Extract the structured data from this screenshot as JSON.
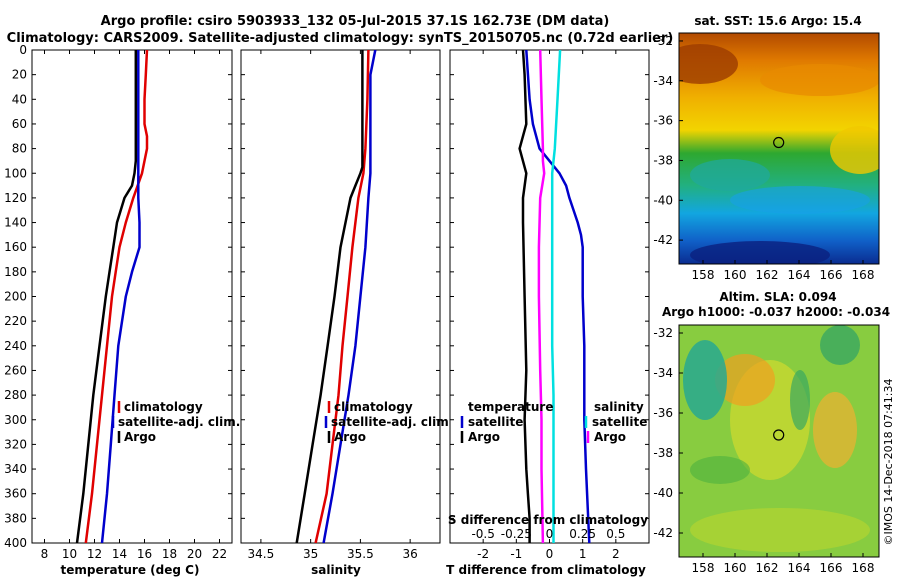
{
  "figure": {
    "title_line1": "Argo profile: csiro 5903933_132 05-Jul-2015 37.1S 162.73E (DM data)",
    "title_line2": "Climatology: CARS2009. Satellite-adjusted climatology: synTS_20150705.nc (0.72d earlier)",
    "watermark": "©IMOS 14-Dec-2018 07:41:34"
  },
  "chart_data": [
    {
      "id": "temperature",
      "type": "line",
      "xlabel": "temperature (deg C)",
      "xlim": [
        7,
        23
      ],
      "xticks": [
        8,
        10,
        12,
        14,
        16,
        18,
        20,
        22
      ],
      "ylim": [
        0,
        400
      ],
      "yticks": [
        0,
        20,
        40,
        60,
        80,
        100,
        120,
        140,
        160,
        180,
        200,
        220,
        240,
        260,
        280,
        300,
        320,
        340,
        360,
        380,
        400
      ],
      "legend": [
        "climatology",
        "satellite-adj. clim.",
        "Argo"
      ],
      "legend_position": "lower-right",
      "series": [
        {
          "name": "climatology",
          "color": "#e00000",
          "depth": [
            0,
            20,
            40,
            60,
            70,
            80,
            90,
            100,
            120,
            140,
            160,
            180,
            200,
            240,
            280,
            320,
            360,
            400
          ],
          "values": [
            16.2,
            16.1,
            16.0,
            16.0,
            16.2,
            16.2,
            16.0,
            15.8,
            15.1,
            14.5,
            14.0,
            13.7,
            13.4,
            13.0,
            12.6,
            12.2,
            11.8,
            11.3
          ]
        },
        {
          "name": "satellite-adj. clim.",
          "color": "#0000cc",
          "depth": [
            0,
            20,
            60,
            100,
            120,
            140,
            160,
            180,
            200,
            240,
            280,
            320,
            360,
            400
          ],
          "values": [
            15.5,
            15.5,
            15.5,
            15.5,
            15.5,
            15.6,
            15.6,
            15.0,
            14.5,
            13.9,
            13.6,
            13.3,
            13.0,
            12.6
          ]
        },
        {
          "name": "Argo",
          "color": "#000000",
          "depth": [
            0,
            20,
            60,
            90,
            100,
            110,
            120,
            140,
            160,
            180,
            200,
            240,
            280,
            320,
            360,
            400
          ],
          "values": [
            15.3,
            15.3,
            15.3,
            15.3,
            15.2,
            15.0,
            14.4,
            13.8,
            13.5,
            13.2,
            12.9,
            12.4,
            11.9,
            11.5,
            11.1,
            10.6
          ]
        }
      ]
    },
    {
      "id": "salinity",
      "type": "line",
      "xlabel": "salinity",
      "xlim": [
        34.3,
        36.3
      ],
      "xticks": [
        34.5,
        35,
        35.5,
        36
      ],
      "ylim": [
        0,
        400
      ],
      "legend": [
        "climatology",
        "satellite-adj. clim.",
        "Argo"
      ],
      "legend_position": "lower-right",
      "series": [
        {
          "name": "climatology",
          "color": "#e00000",
          "depth": [
            0,
            40,
            80,
            100,
            120,
            160,
            200,
            240,
            280,
            320,
            360,
            400
          ],
          "values": [
            35.58,
            35.57,
            35.55,
            35.53,
            35.48,
            35.42,
            35.37,
            35.32,
            35.28,
            35.22,
            35.16,
            35.05
          ]
        },
        {
          "name": "satellite-adj. clim.",
          "color": "#0000cc",
          "depth": [
            0,
            20,
            60,
            100,
            120,
            160,
            200,
            240,
            280,
            320,
            360,
            400
          ],
          "values": [
            35.65,
            35.6,
            35.6,
            35.6,
            35.58,
            35.55,
            35.5,
            35.45,
            35.38,
            35.3,
            35.22,
            35.13
          ]
        },
        {
          "name": "Argo",
          "color": "#000000",
          "depth": [
            0,
            40,
            80,
            95,
            100,
            110,
            120,
            160,
            200,
            240,
            280,
            320,
            360,
            400
          ],
          "values": [
            35.52,
            35.52,
            35.52,
            35.52,
            35.5,
            35.45,
            35.4,
            35.3,
            35.24,
            35.17,
            35.1,
            35.02,
            34.94,
            34.86
          ]
        }
      ]
    },
    {
      "id": "differences",
      "type": "line",
      "xlabel": "T difference from climatology",
      "xlabel_top": "S difference from climatology",
      "xlim": [
        -3,
        3
      ],
      "xticks": [
        -2,
        -1,
        0,
        1,
        2
      ],
      "xticks_top": [
        "-0.5",
        "-0.25",
        "0",
        "0.25",
        "0.5"
      ],
      "ylim": [
        0,
        400
      ],
      "legend_left_title": "temperature",
      "legend_left": [
        "satellite",
        "Argo"
      ],
      "legend_right_title": "salinity",
      "legend_right": [
        "satellite",
        "Argo"
      ],
      "series": [
        {
          "name": "temperature satellite",
          "color": "#0000cc",
          "depth": [
            0,
            40,
            60,
            80,
            90,
            100,
            110,
            120,
            140,
            150,
            160,
            200,
            240,
            300,
            340,
            400
          ],
          "values": [
            -0.7,
            -0.6,
            -0.5,
            -0.3,
            0.0,
            0.3,
            0.5,
            0.6,
            0.85,
            0.95,
            1.0,
            1.0,
            1.05,
            1.05,
            1.1,
            1.2
          ]
        },
        {
          "name": "temperature Argo",
          "color": "#000000",
          "depth": [
            0,
            20,
            60,
            80,
            100,
            120,
            140,
            200,
            260,
            300,
            340,
            360,
            380,
            400
          ],
          "values": [
            -0.8,
            -0.75,
            -0.7,
            -0.9,
            -0.7,
            -0.8,
            -0.8,
            -0.75,
            -0.7,
            -0.75,
            -0.7,
            -0.65,
            -0.6,
            -0.6
          ]
        },
        {
          "name": "salinity satellite",
          "color": "#00e0e0",
          "depth": [
            0,
            40,
            80,
            100,
            120,
            160,
            200,
            240,
            280,
            320,
            360,
            400
          ],
          "values": [
            0.08,
            0.06,
            0.04,
            0.02,
            0.02,
            0.02,
            0.02,
            0.02,
            0.03,
            0.03,
            0.03,
            0.03
          ]
        },
        {
          "name": "salinity Argo",
          "color": "#ff00ff",
          "depth": [
            0,
            40,
            80,
            90,
            100,
            120,
            160,
            200,
            260,
            300,
            340,
            400
          ],
          "values": [
            -0.07,
            -0.06,
            -0.05,
            -0.05,
            -0.04,
            -0.07,
            -0.08,
            -0.08,
            -0.07,
            -0.06,
            -0.06,
            -0.05
          ]
        }
      ]
    },
    {
      "id": "sst-map",
      "type": "heatmap",
      "title": "sat. SST: 15.6 Argo: 15.4",
      "xticks": [
        158,
        160,
        162,
        164,
        166,
        168
      ],
      "yticks": [
        -32,
        -34,
        -36,
        -38,
        -40,
        -42
      ],
      "xlim": [
        156.5,
        169
      ],
      "ylim": [
        -43.2,
        -31.6
      ],
      "marker": {
        "lon": 162.73,
        "lat": -37.1
      }
    },
    {
      "id": "sla-map",
      "type": "heatmap",
      "title_line1": "Altim. SLA: 0.094",
      "title_line2": "Argo h1000: -0.037 h2000: -0.034",
      "xticks": [
        158,
        160,
        162,
        164,
        166,
        168
      ],
      "yticks": [
        -32,
        -34,
        -36,
        -38,
        -40,
        -42
      ],
      "xlim": [
        156.5,
        169
      ],
      "ylim": [
        -43.2,
        -31.6
      ],
      "marker": {
        "lon": 162.73,
        "lat": -37.1
      }
    }
  ]
}
